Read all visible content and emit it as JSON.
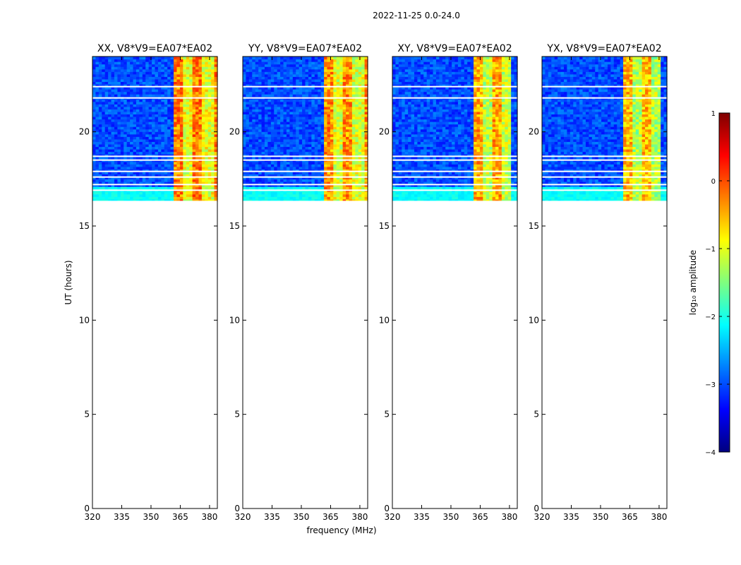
{
  "figure": {
    "suptitle": "2022-11-25 0.0-24.0",
    "xlabel": "frequency (MHz)",
    "ylabel": "UT (hours)"
  },
  "colorbar": {
    "label": "log₁₀ amplitude",
    "range": [
      -4,
      1
    ],
    "ticks": [
      1,
      0,
      -1,
      -2,
      -3,
      -4
    ],
    "tick_labels": [
      "1",
      "0",
      "−1",
      "−2",
      "−3",
      "−4"
    ],
    "colormap": "jet",
    "colors": [
      "#00007f",
      "#0000ff",
      "#007fff",
      "#00ffff",
      "#7fff7f",
      "#ffff00",
      "#ff7f00",
      "#ff0000",
      "#7f0000"
    ]
  },
  "chart_data": [
    {
      "type": "heatmap",
      "title": "XX, V8*V9=EA07*EA02",
      "xlim": [
        320,
        384
      ],
      "ylim": [
        0,
        24
      ],
      "x_ticks": [
        320,
        335,
        350,
        365,
        380
      ],
      "y_ticks": [
        0,
        5,
        10,
        15,
        20
      ],
      "data_extent_hours": [
        16.3,
        24.0
      ],
      "background_log_amplitude": -3.0,
      "rfi_band_mhz": [
        361,
        384
      ],
      "rfi_log_amplitude": -0.6,
      "data_gaps_ut": [
        18.7,
        18.5,
        17.9,
        17.6,
        17.2,
        16.9,
        16.3,
        22.4,
        21.8
      ]
    },
    {
      "type": "heatmap",
      "title": "YY, V8*V9=EA07*EA02",
      "xlim": [
        320,
        384
      ],
      "ylim": [
        0,
        24
      ],
      "x_ticks": [
        320,
        335,
        350,
        365,
        380
      ],
      "y_ticks": [
        0,
        5,
        10,
        15,
        20
      ],
      "data_extent_hours": [
        16.3,
        24.0
      ],
      "background_log_amplitude": -3.0,
      "rfi_band_mhz": [
        361,
        384
      ],
      "rfi_log_amplitude": -0.7,
      "data_gaps_ut": [
        18.7,
        18.5,
        17.9,
        17.6,
        17.2,
        16.9,
        16.3,
        22.4,
        21.8
      ]
    },
    {
      "type": "heatmap",
      "title": "XY, V8*V9=EA07*EA02",
      "xlim": [
        320,
        384
      ],
      "ylim": [
        0,
        24
      ],
      "x_ticks": [
        320,
        335,
        350,
        365,
        380
      ],
      "y_ticks": [
        0,
        5,
        10,
        15,
        20
      ],
      "data_extent_hours": [
        16.3,
        24.0
      ],
      "background_log_amplitude": -3.0,
      "rfi_band_mhz": [
        361,
        380
      ],
      "rfi_log_amplitude": -0.8,
      "data_gaps_ut": [
        18.7,
        18.5,
        17.9,
        17.6,
        17.2,
        16.9,
        16.3,
        22.4,
        21.8
      ]
    },
    {
      "type": "heatmap",
      "title": "YX, V8*V9=EA07*EA02",
      "xlim": [
        320,
        384
      ],
      "ylim": [
        0,
        24
      ],
      "x_ticks": [
        320,
        335,
        350,
        365,
        380
      ],
      "y_ticks": [
        0,
        5,
        10,
        15,
        20
      ],
      "data_extent_hours": [
        16.3,
        24.0
      ],
      "background_log_amplitude": -3.0,
      "rfi_band_mhz": [
        361,
        380
      ],
      "rfi_log_amplitude": -0.9,
      "data_gaps_ut": [
        18.7,
        18.5,
        17.9,
        17.6,
        17.2,
        16.9,
        16.3,
        22.4,
        21.8
      ]
    }
  ]
}
